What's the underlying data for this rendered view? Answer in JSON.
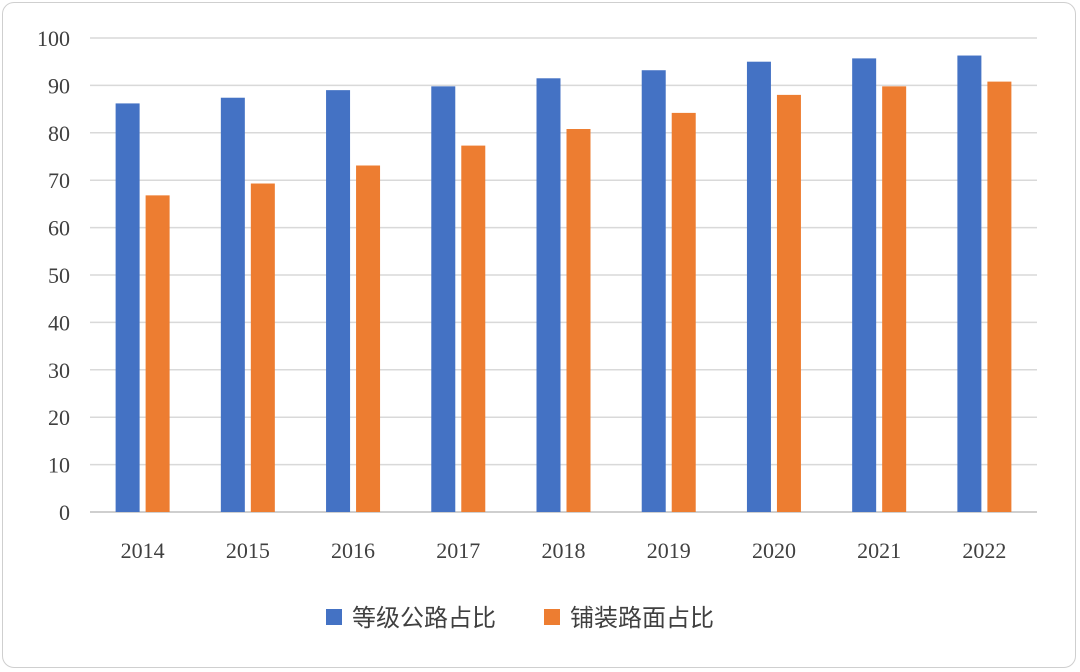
{
  "chart_data": {
    "type": "bar",
    "title": "",
    "xlabel": "",
    "ylabel": "",
    "ylim": [
      0,
      100
    ],
    "yticks": [
      "0",
      "10",
      "20",
      "30",
      "40",
      "50",
      "60",
      "70",
      "80",
      "90",
      "100"
    ],
    "categories": [
      "2014",
      "2015",
      "2016",
      "2017",
      "2018",
      "2019",
      "2020",
      "2021",
      "2022"
    ],
    "series": [
      {
        "name": "等级公路占比",
        "color": "#4472C4",
        "values": [
          86.2,
          87.4,
          89.0,
          89.8,
          91.5,
          93.2,
          95.0,
          95.7,
          96.3
        ]
      },
      {
        "name": "铺装路面占比",
        "color": "#ED7D31",
        "values": [
          66.8,
          69.3,
          73.1,
          77.3,
          80.8,
          84.2,
          88.0,
          89.8,
          90.8
        ]
      }
    ],
    "grid": true,
    "legend_position": "bottom"
  }
}
